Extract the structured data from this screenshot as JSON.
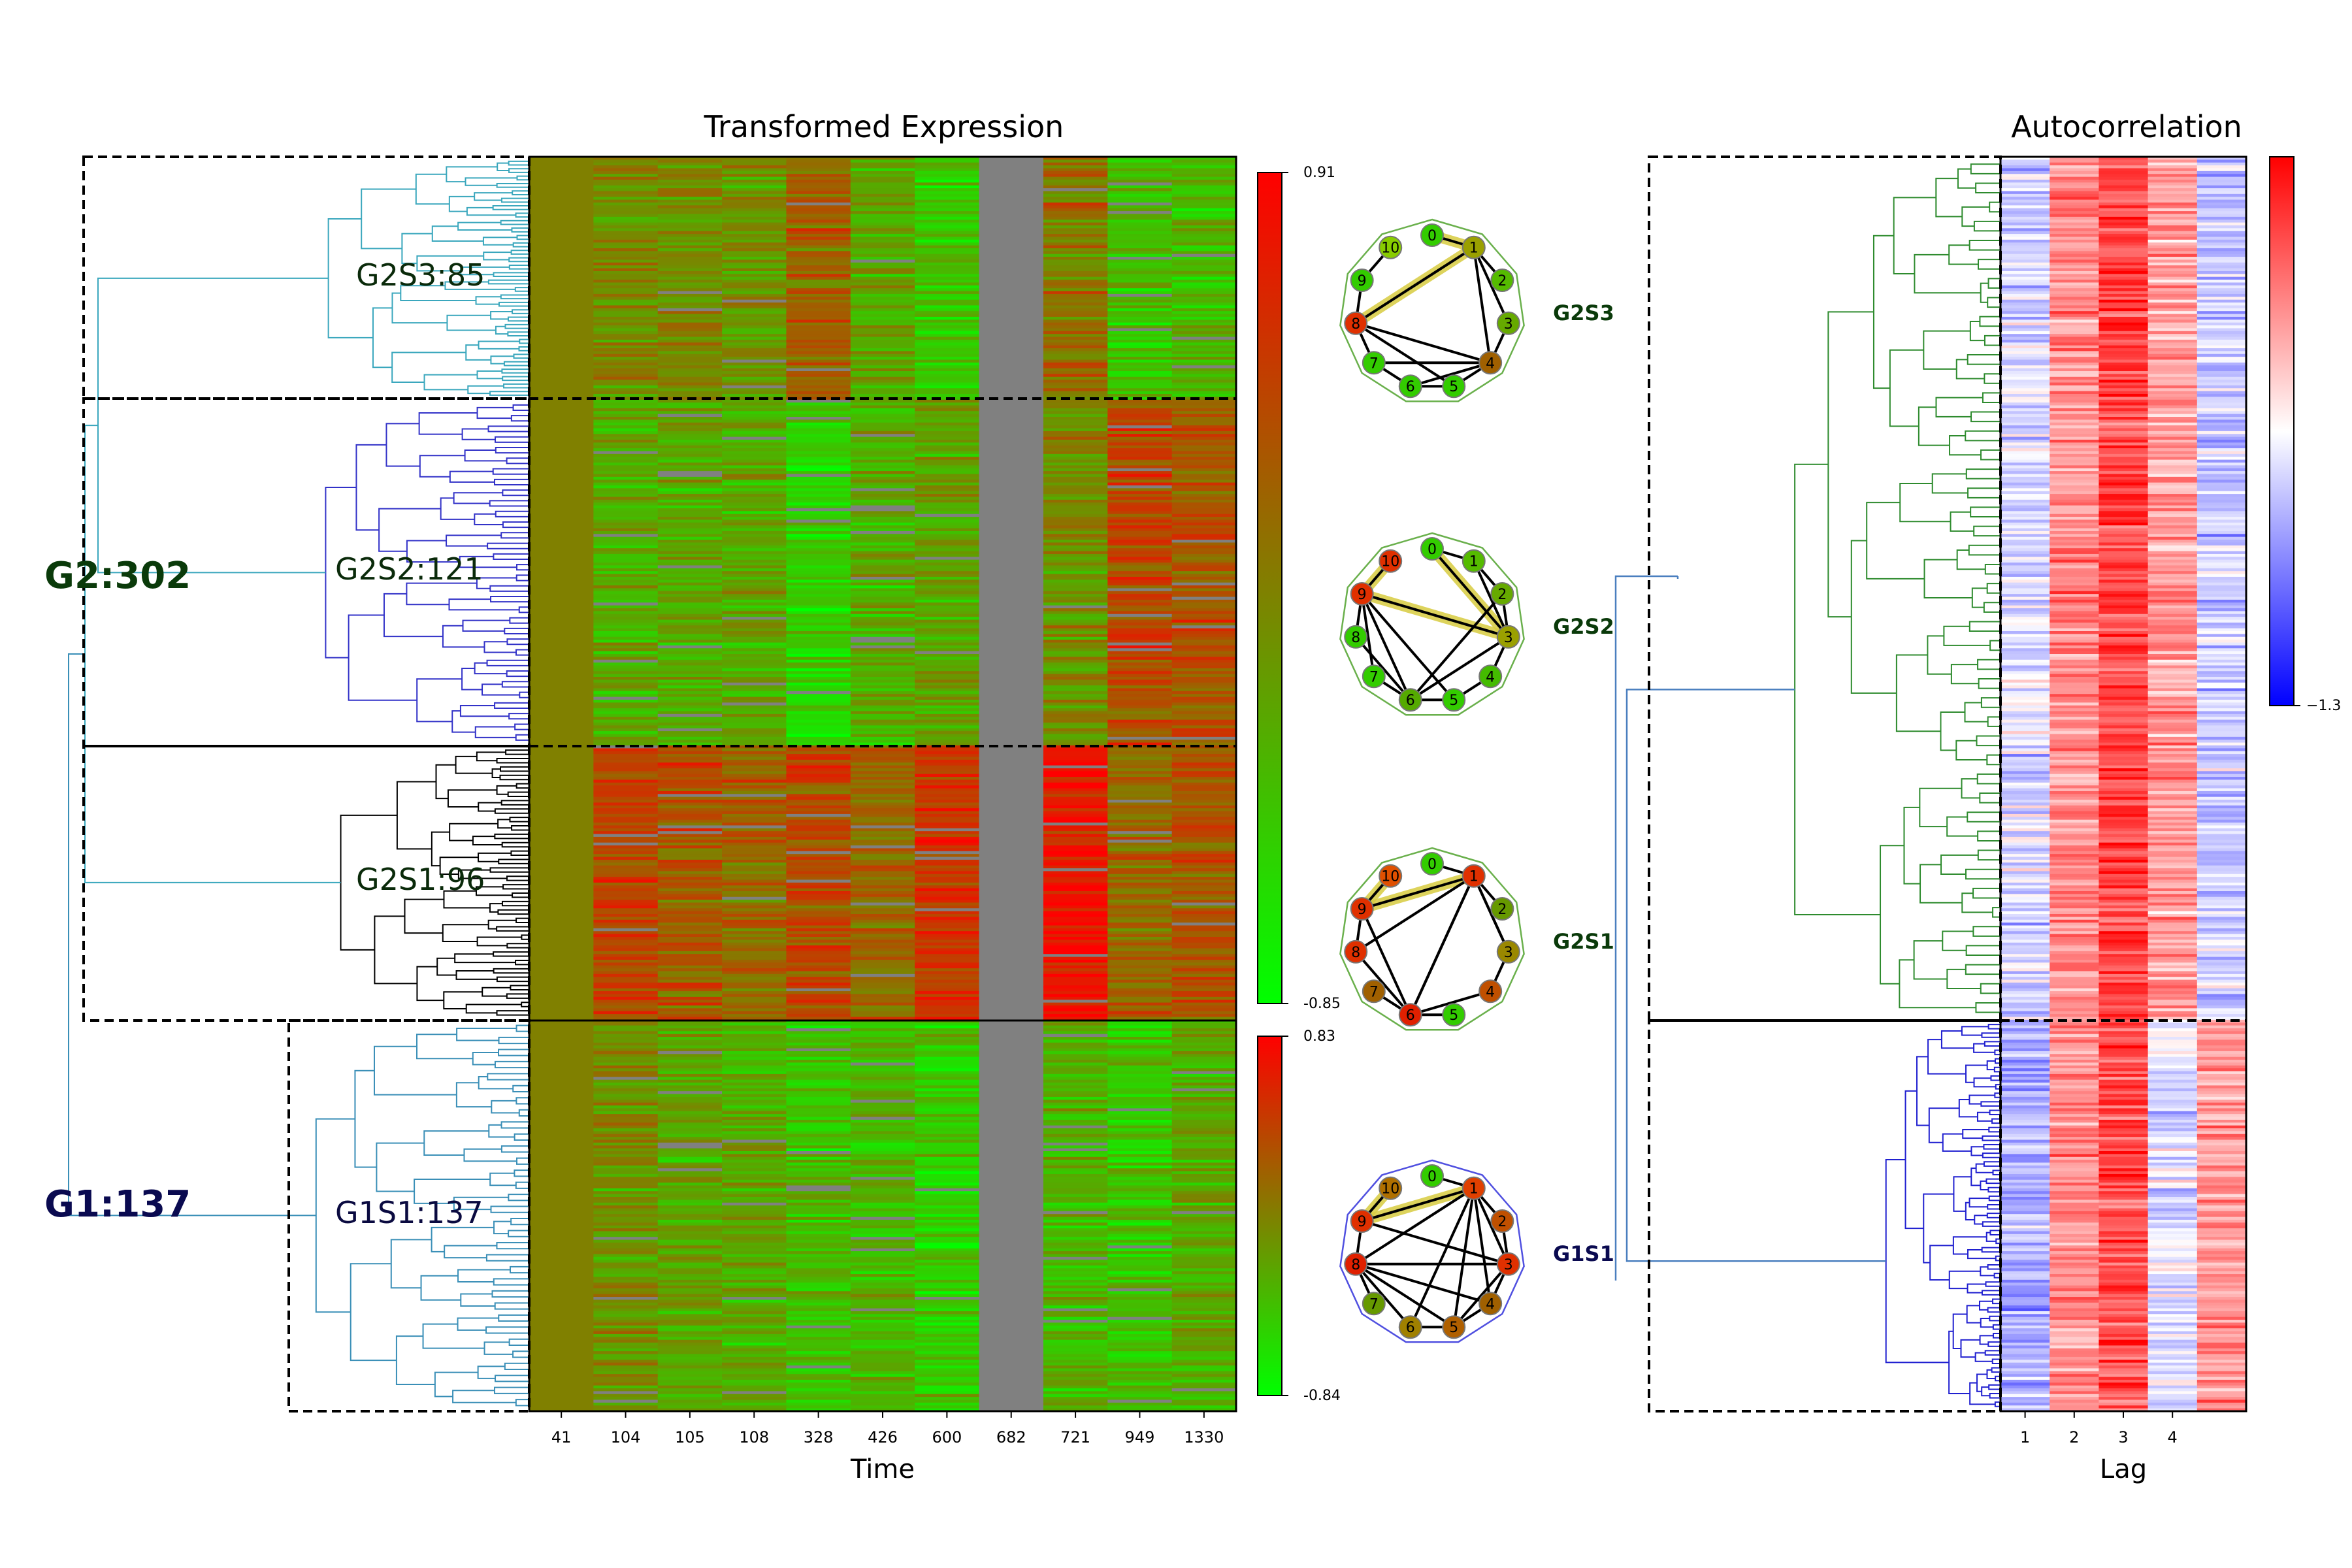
{
  "chart_data": [
    {
      "type": "heatmap",
      "title": "Transformed Expression",
      "xlabel": "Time",
      "ylabel": "",
      "x_tick_labels": [
        "41",
        "104",
        "105",
        "108",
        "328",
        "426",
        "600",
        "682",
        "721",
        "949",
        "1330"
      ],
      "clusters": [
        {
          "label": "G2S3:85",
          "size": 85,
          "dendrogram_color": "#3aa7bd",
          "column_means": [
            0.0,
            -0.05,
            -0.1,
            -0.15,
            0.25,
            -0.3,
            -0.55,
            null,
            0.1,
            -0.5,
            -0.45
          ]
        },
        {
          "label": "G2S2:121",
          "size": 121,
          "dendrogram_color": "#3232c8",
          "column_means": [
            0.0,
            -0.35,
            -0.3,
            -0.3,
            -0.6,
            -0.35,
            -0.3,
            null,
            -0.1,
            0.45,
            0.35
          ]
        },
        {
          "label": "G2S1:96",
          "size": 96,
          "dendrogram_color": "#000000",
          "column_means": [
            0.0,
            0.45,
            0.3,
            0.2,
            0.45,
            0.2,
            0.6,
            null,
            0.85,
            0.2,
            0.35
          ]
        },
        {
          "label": "G1S1:137",
          "size": 137,
          "dendrogram_color": "#3a8fb7",
          "column_means": [
            0.0,
            -0.1,
            -0.3,
            -0.35,
            -0.5,
            -0.4,
            -0.6,
            null,
            -0.4,
            -0.5,
            -0.3
          ]
        }
      ],
      "group_labels": [
        {
          "label": "G2:302",
          "color": "#0a3a0a"
        },
        {
          "label": "G1:137",
          "color": "#0a0a50"
        }
      ],
      "colorbars": [
        {
          "max": 0.91,
          "min": -0.85,
          "max_label": "0.91",
          "min_label": "-0.85",
          "colors": [
            "#ff0000",
            "#808000",
            "#00ff00"
          ]
        },
        {
          "max": 0.83,
          "min": -0.84,
          "max_label": "0.83",
          "min_label": "-0.84",
          "colors": [
            "#ff0000",
            "#808000",
            "#00ff00"
          ]
        }
      ],
      "missing_color": "#808080"
    },
    {
      "type": "heatmap",
      "title": "Autocorrelation",
      "xlabel": "Lag",
      "ylabel": "",
      "x_tick_labels": [
        "1",
        "2",
        "3",
        "4"
      ],
      "columns": 5,
      "groups": [
        {
          "size": 302,
          "dendrogram_color": "#2e8b2e",
          "column_means": [
            -0.15,
            0.45,
            0.75,
            0.4,
            -0.2
          ]
        },
        {
          "size": 137,
          "dendrogram_color": "#2020d0",
          "column_means": [
            -0.3,
            0.45,
            0.7,
            -0.1,
            0.4
          ]
        }
      ],
      "colorbar": {
        "min_label": "−1.3",
        "colors": [
          "#ff0000",
          "#ffffff",
          "#0000ff"
        ]
      }
    },
    {
      "type": "network",
      "node_labels": [
        "0",
        "1",
        "2",
        "3",
        "4",
        "5",
        "6",
        "7",
        "8",
        "9",
        "10"
      ],
      "graphs": [
        {
          "label": "G2S3",
          "label_color": "#0a3a0a",
          "hull_color": "#6ab04c",
          "node_colors": [
            "#33cc00",
            "#9aa000",
            "#55bb00",
            "#66aa00",
            "#a06000",
            "#33cc00",
            "#33cc00",
            "#33cc00",
            "#e03000",
            "#33cc00",
            "#88cc00"
          ],
          "edges": [
            [
              0,
              1
            ],
            [
              1,
              8
            ],
            [
              1,
              2
            ],
            [
              8,
              9
            ],
            [
              9,
              10
            ],
            [
              8,
              4
            ],
            [
              8,
              5
            ],
            [
              8,
              7
            ],
            [
              7,
              6
            ],
            [
              6,
              5
            ],
            [
              5,
              4
            ],
            [
              4,
              3
            ],
            [
              3,
              1
            ],
            [
              4,
              1
            ],
            [
              4,
              7
            ],
            [
              6,
              4
            ]
          ],
          "highlight_edges": [
            [
              1,
              8
            ],
            [
              0,
              1
            ]
          ]
        },
        {
          "label": "G2S2",
          "label_color": "#0a3a0a",
          "hull_color": "#6ab04c",
          "node_colors": [
            "#33cc00",
            "#55bb00",
            "#66aa00",
            "#9aa000",
            "#44bb00",
            "#33cc00",
            "#55aa00",
            "#33cc00",
            "#33cc00",
            "#e03000",
            "#e03000"
          ],
          "edges": [
            [
              0,
              1
            ],
            [
              0,
              3
            ],
            [
              1,
              2
            ],
            [
              2,
              3
            ],
            [
              3,
              9
            ],
            [
              9,
              10
            ],
            [
              9,
              8
            ],
            [
              9,
              7
            ],
            [
              9,
              6
            ],
            [
              9,
              5
            ],
            [
              8,
              6
            ],
            [
              7,
              6
            ],
            [
              6,
              5
            ],
            [
              5,
              4
            ],
            [
              4,
              3
            ],
            [
              6,
              3
            ],
            [
              6,
              2
            ],
            [
              3,
              1
            ]
          ],
          "highlight_edges": [
            [
              3,
              9
            ],
            [
              9,
              10
            ],
            [
              0,
              3
            ]
          ]
        },
        {
          "label": "G2S1",
          "label_color": "#0a3a0a",
          "hull_color": "#6ab04c",
          "node_colors": [
            "#33cc00",
            "#e03000",
            "#669900",
            "#9a8800",
            "#c05000",
            "#33cc00",
            "#e02000",
            "#a06000",
            "#e03000",
            "#e03000",
            "#e05000"
          ],
          "edges": [
            [
              0,
              1
            ],
            [
              1,
              2
            ],
            [
              1,
              3
            ],
            [
              1,
              6
            ],
            [
              1,
              9
            ],
            [
              1,
              8
            ],
            [
              9,
              10
            ],
            [
              9,
              8
            ],
            [
              9,
              6
            ],
            [
              8,
              6
            ],
            [
              7,
              6
            ],
            [
              6,
              5
            ],
            [
              6,
              4
            ],
            [
              4,
              3
            ],
            [
              3,
              1
            ],
            [
              6,
              1
            ]
          ],
          "highlight_edges": [
            [
              1,
              9
            ],
            [
              9,
              10
            ]
          ]
        },
        {
          "label": "G1S1",
          "label_color": "#0a0a50",
          "hull_color": "#5050e0",
          "node_colors": [
            "#33cc00",
            "#e04000",
            "#c05000",
            "#e03000",
            "#a06000",
            "#b06000",
            "#a08000",
            "#669900",
            "#e02000",
            "#e03000",
            "#b07000"
          ],
          "edges": [
            [
              0,
              1
            ],
            [
              1,
              2
            ],
            [
              1,
              3
            ],
            [
              1,
              8
            ],
            [
              1,
              9
            ],
            [
              1,
              5
            ],
            [
              1,
              4
            ],
            [
              9,
              10
            ],
            [
              9,
              8
            ],
            [
              9,
              3
            ],
            [
              8,
              5
            ],
            [
              8,
              6
            ],
            [
              8,
              3
            ],
            [
              8,
              4
            ],
            [
              8,
              7
            ],
            [
              6,
              5
            ],
            [
              5,
              4
            ],
            [
              4,
              3
            ],
            [
              3,
              2
            ],
            [
              6,
              1
            ],
            [
              5,
              3
            ]
          ],
          "highlight_edges": [
            [
              1,
              9
            ],
            [
              9,
              10
            ]
          ]
        }
      ]
    }
  ]
}
